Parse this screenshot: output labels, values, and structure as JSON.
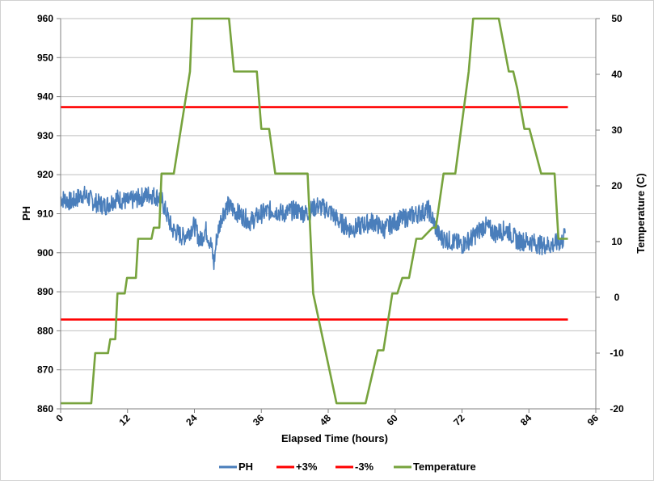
{
  "chart_data": {
    "type": "line",
    "title": "",
    "xlabel": "Elapsed Time (hours)",
    "ylabel": "PH",
    "y2label": "Temperature (C)",
    "xlim": [
      0,
      96
    ],
    "ylim": [
      860,
      960
    ],
    "y2lim": [
      -20,
      50
    ],
    "x_ticks": [
      0,
      12,
      24,
      36,
      48,
      60,
      72,
      84,
      96
    ],
    "y_ticks": [
      860,
      870,
      880,
      890,
      900,
      910,
      920,
      930,
      940,
      950,
      960
    ],
    "y2_ticks": [
      -20,
      -10,
      0,
      10,
      20,
      30,
      40,
      50
    ],
    "grid": "horizontal",
    "legend_position": "bottom",
    "series": [
      {
        "name": "PH",
        "axis": "left",
        "color": "#4a7ebb",
        "x": [
          0,
          2,
          4,
          6,
          8,
          10,
          12,
          14,
          16,
          18,
          20,
          22,
          24,
          25,
          26,
          27,
          27.5,
          28,
          29,
          30,
          32,
          34,
          36,
          38,
          40,
          42,
          44,
          46,
          48,
          50,
          52,
          54,
          56,
          58,
          60,
          62,
          64,
          66,
          68,
          70,
          72,
          74,
          76,
          78,
          80,
          82,
          84,
          86,
          88,
          90,
          90.5
        ],
        "y": [
          914,
          913,
          915,
          913,
          912,
          914,
          913,
          914,
          915,
          914,
          906,
          904,
          907,
          903,
          906,
          902,
          897,
          904,
          910,
          912,
          910,
          908,
          910,
          911,
          910,
          911,
          910,
          912,
          911,
          908,
          906,
          907,
          908,
          906,
          908,
          909,
          910,
          911,
          904,
          903,
          902,
          904,
          907,
          905,
          906,
          903,
          903,
          902,
          902,
          903,
          905
        ]
      },
      {
        "name": "+3%",
        "axis": "left",
        "color": "#ff0000",
        "x": [
          0,
          91
        ],
        "y": [
          937.3,
          937.3
        ]
      },
      {
        "name": "-3%",
        "axis": "left",
        "color": "#ff0000",
        "x": [
          0,
          91
        ],
        "y": [
          882.9,
          882.9
        ]
      },
      {
        "name": "Temperature",
        "axis": "right",
        "color": "#77a33d",
        "x": [
          0,
          5.5,
          6.2,
          8.5,
          8.9,
          9.8,
          10.2,
          11.5,
          11.9,
          13.5,
          13.9,
          16.3,
          16.7,
          17.7,
          18.1,
          20.3,
          23.2,
          23.6,
          28,
          30.2,
          31.1,
          32,
          35.2,
          36,
          37.4,
          38.5,
          40.8,
          41.6,
          44.3,
          45.3,
          49.5,
          50.3,
          54.7,
          56.9,
          57.9,
          59.5,
          60.4,
          61.3,
          62.5,
          63.8,
          64.8,
          66.7,
          67.3,
          68.7,
          70.8,
          73.2,
          74,
          78.6,
          80.4,
          81.2,
          81.9,
          83.2,
          84.1,
          86.2,
          86.9,
          88.6,
          89.3,
          91
        ],
        "y": [
          -19,
          -19,
          -10,
          -10,
          -7.5,
          -7.5,
          0.7,
          0.7,
          3.5,
          3.5,
          10.5,
          10.5,
          12.5,
          12.5,
          22.2,
          22.2,
          40.5,
          50,
          50,
          50,
          40.5,
          40.5,
          40.5,
          30.2,
          30.2,
          22.2,
          22.2,
          22.2,
          22.2,
          0.7,
          -19,
          -19,
          -19,
          -9.5,
          -9.5,
          0.7,
          0.7,
          3.5,
          3.5,
          10.5,
          10.5,
          12.5,
          12.5,
          22.2,
          22.2,
          40.5,
          50,
          50,
          40.5,
          40.5,
          37.5,
          30.2,
          30.2,
          22.2,
          22.2,
          22.2,
          10.5,
          10.5
        ]
      }
    ]
  }
}
